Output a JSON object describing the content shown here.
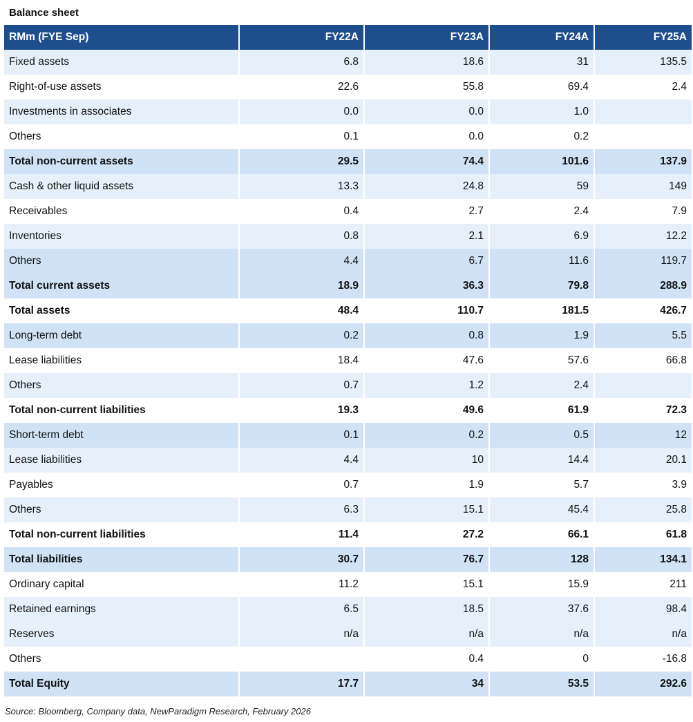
{
  "title": "Balance sheet",
  "table": {
    "headers": [
      "RMm (FYE Sep)",
      "FY22A",
      "FY23A",
      "FY24A",
      "FY25A"
    ],
    "rows": [
      {
        "label": "Fixed assets",
        "values": [
          "6.8",
          "18.6",
          "31",
          "135.5"
        ],
        "bold": false,
        "shade": "l"
      },
      {
        "label": "Right-of-use assets",
        "values": [
          "22.6",
          "55.8",
          "69.4",
          "2.4"
        ],
        "bold": false,
        "shade": "w"
      },
      {
        "label": "Investments in associates",
        "values": [
          "0.0",
          "0.0",
          "1.0",
          ""
        ],
        "bold": false,
        "shade": "l"
      },
      {
        "label": "Others",
        "values": [
          "0.1",
          "0.0",
          "0.2",
          ""
        ],
        "bold": false,
        "shade": "w"
      },
      {
        "label": "Total non-current assets",
        "values": [
          "29.5",
          "74.4",
          "101.6",
          "137.9"
        ],
        "bold": true,
        "shade": "m"
      },
      {
        "label": "Cash & other liquid assets",
        "values": [
          "13.3",
          "24.8",
          "59",
          "149"
        ],
        "bold": false,
        "shade": "l"
      },
      {
        "label": "Receivables",
        "values": [
          "0.4",
          "2.7",
          "2.4",
          "7.9"
        ],
        "bold": false,
        "shade": "w"
      },
      {
        "label": "Inventories",
        "values": [
          "0.8",
          "2.1",
          "6.9",
          "12.2"
        ],
        "bold": false,
        "shade": "l"
      },
      {
        "label": "Others",
        "values": [
          "4.4",
          "6.7",
          "11.6",
          "119.7"
        ],
        "bold": false,
        "shade": "m"
      },
      {
        "label": "Total current assets",
        "values": [
          "18.9",
          "36.3",
          "79.8",
          "288.9"
        ],
        "bold": true,
        "shade": "m"
      },
      {
        "label": "Total assets",
        "values": [
          "48.4",
          "110.7",
          "181.5",
          "426.7"
        ],
        "bold": true,
        "shade": "w"
      },
      {
        "label": "Long-term debt",
        "values": [
          "0.2",
          "0.8",
          "1.9",
          "5.5"
        ],
        "bold": false,
        "shade": "m"
      },
      {
        "label": "Lease liabilities",
        "values": [
          "18.4",
          "47.6",
          "57.6",
          "66.8"
        ],
        "bold": false,
        "shade": "w"
      },
      {
        "label": "Others",
        "values": [
          "0.7",
          "1.2",
          "2.4",
          ""
        ],
        "bold": false,
        "shade": "l"
      },
      {
        "label": "Total non-current liabilities",
        "values": [
          "19.3",
          "49.6",
          "61.9",
          "72.3"
        ],
        "bold": true,
        "shade": "w"
      },
      {
        "label": "Short-term debt",
        "values": [
          "0.1",
          "0.2",
          "0.5",
          "12"
        ],
        "bold": false,
        "shade": "m"
      },
      {
        "label": "Lease liabilities",
        "values": [
          "4.4",
          "10",
          "14.4",
          "20.1"
        ],
        "bold": false,
        "shade": "l"
      },
      {
        "label": "Payables",
        "values": [
          "0.7",
          "1.9",
          "5.7",
          "3.9"
        ],
        "bold": false,
        "shade": "w"
      },
      {
        "label": "Others",
        "values": [
          "6.3",
          "15.1",
          "45.4",
          "25.8"
        ],
        "bold": false,
        "shade": "l"
      },
      {
        "label": "Total non-current liabilities",
        "values": [
          "11.4",
          "27.2",
          "66.1",
          "61.8"
        ],
        "bold": true,
        "shade": "w"
      },
      {
        "label": "Total liabilities",
        "values": [
          "30.7",
          "76.7",
          "128",
          "134.1"
        ],
        "bold": true,
        "shade": "m"
      },
      {
        "label": "Ordinary capital",
        "values": [
          "11.2",
          "15.1",
          "15.9",
          "211"
        ],
        "bold": false,
        "shade": "w"
      },
      {
        "label": "Retained earnings",
        "values": [
          "6.5",
          "18.5",
          "37.6",
          "98.4"
        ],
        "bold": false,
        "shade": "l"
      },
      {
        "label": "Reserves",
        "values": [
          "n/a",
          "n/a",
          "n/a",
          "n/a"
        ],
        "bold": false,
        "shade": "l"
      },
      {
        "label": "Others",
        "values": [
          "",
          "0.4",
          "0",
          "-16.8"
        ],
        "bold": false,
        "shade": "w"
      },
      {
        "label": "Total Equity",
        "values": [
          "17.7",
          "34",
          "53.5",
          "292.6"
        ],
        "bold": true,
        "shade": "m"
      }
    ]
  },
  "source": "Source: Bloomberg, Company data, NewParadigm Research, February 2026"
}
